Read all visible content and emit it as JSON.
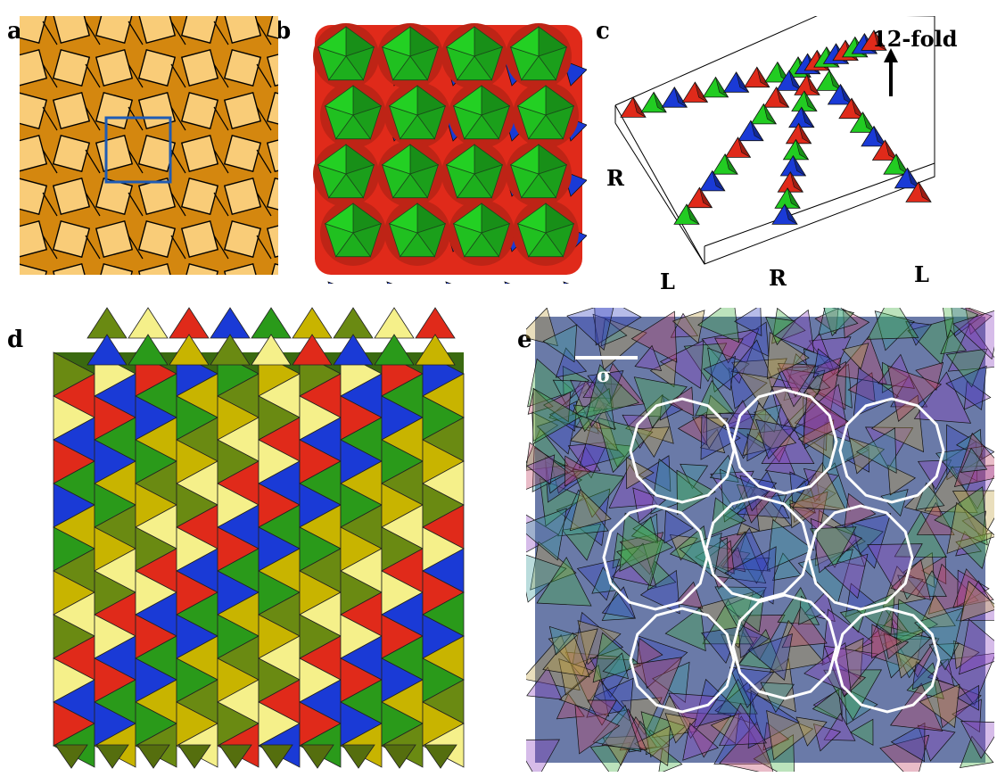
{
  "panels": {
    "a": {
      "label": "a"
    },
    "b": {
      "label": "b"
    },
    "c": {
      "label": "c",
      "axis_label": "12-fold",
      "chain_labels": [
        "R",
        "L",
        "R",
        "L"
      ]
    },
    "d": {
      "label": "d"
    },
    "e": {
      "label": "e",
      "scale_label": "σ"
    }
  },
  "colors": {
    "light_tile": "#f9cc78",
    "dark_tile": "#d4870f",
    "highlight_box": "#1e5bb5",
    "red": "#e02a1a",
    "green": "#22cc22",
    "blue": "#1a3ad6",
    "yellow": "#f5f08a",
    "olive": "#6a8a12",
    "circle": "#ffffff"
  }
}
